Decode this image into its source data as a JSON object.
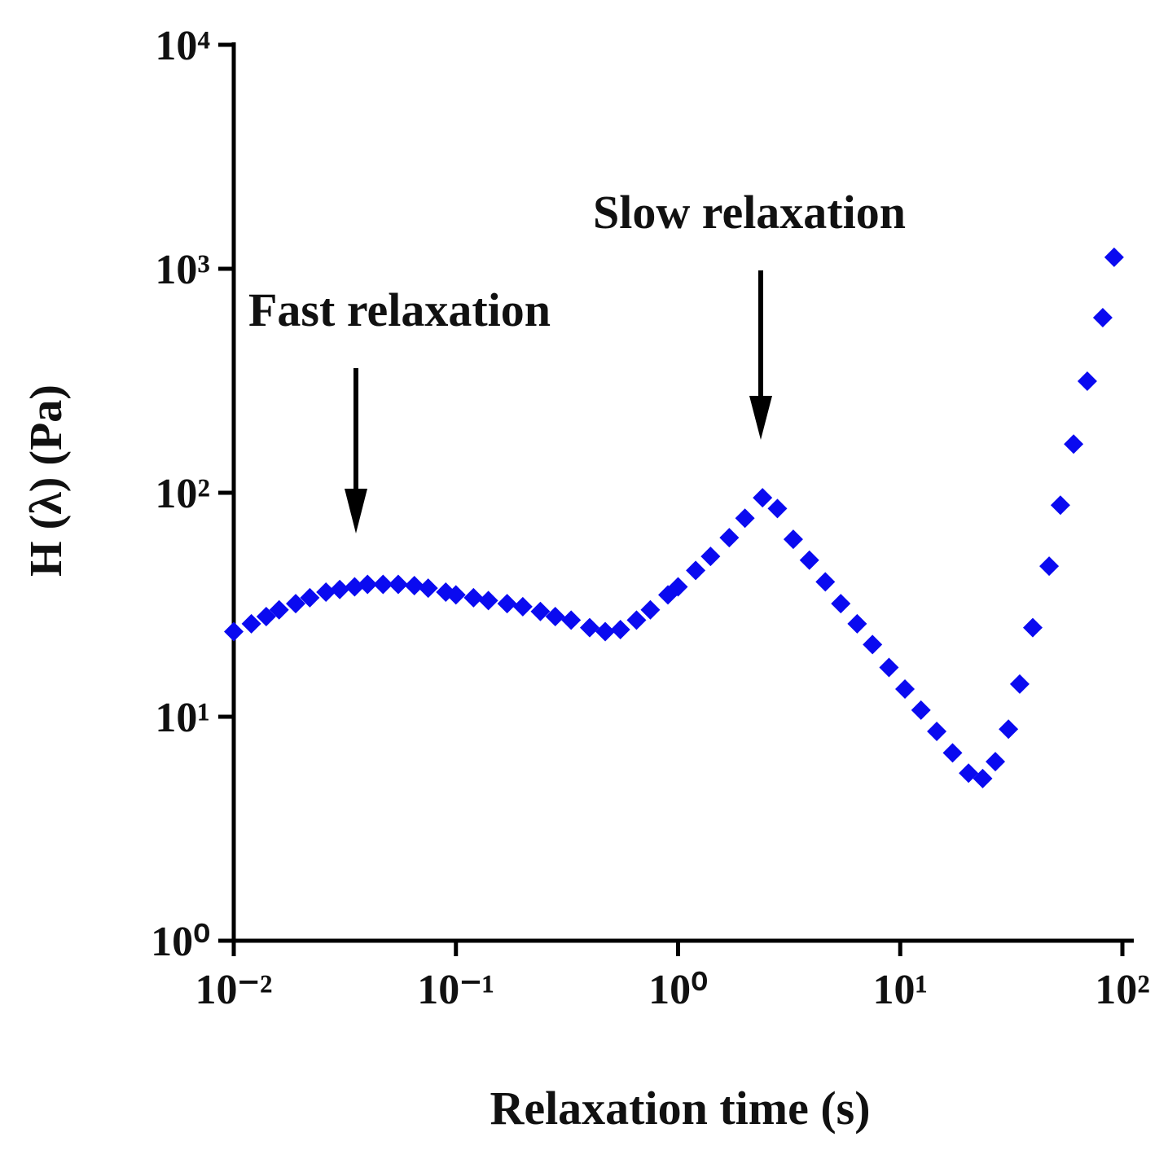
{
  "chart_data": {
    "type": "scatter",
    "xlabel": "Relaxation time (s)",
    "ylabel": "H (λ) (Pa)",
    "annotations": [
      "Fast relaxation",
      "Slow relaxation"
    ],
    "xscale": "log",
    "yscale": "log",
    "xlim": [
      0.01,
      100
    ],
    "ylim": [
      1,
      10000
    ],
    "xticks": [
      {
        "value": 0.01,
        "label": "10⁻²"
      },
      {
        "value": 0.1,
        "label": "10⁻¹"
      },
      {
        "value": 1,
        "label": "10⁰"
      },
      {
        "value": 10,
        "label": "10¹"
      },
      {
        "value": 100,
        "label": "10²"
      }
    ],
    "yticks": [
      {
        "value": 1,
        "label": "10⁰"
      },
      {
        "value": 10,
        "label": "10¹"
      },
      {
        "value": 100,
        "label": "10²"
      },
      {
        "value": 1000,
        "label": "10³"
      },
      {
        "value": 10000,
        "label": "10⁴"
      }
    ],
    "color": "#0a0af0",
    "x": [
      0.01,
      0.012,
      0.014,
      0.016,
      0.019,
      0.022,
      0.026,
      0.03,
      0.035,
      0.04,
      0.047,
      0.055,
      0.065,
      0.075,
      0.09,
      0.1,
      0.12,
      0.14,
      0.17,
      0.2,
      0.24,
      0.28,
      0.33,
      0.4,
      0.47,
      0.55,
      0.65,
      0.75,
      0.9,
      1.0,
      1.2,
      1.4,
      1.7,
      2.0,
      2.4,
      2.8,
      3.3,
      3.9,
      4.6,
      5.4,
      6.4,
      7.5,
      8.9,
      10.5,
      12.4,
      14.6,
      17.2,
      20.3,
      23.5,
      26.8,
      30.7,
      34.5,
      39.5,
      46.8,
      52.6,
      60.3,
      69.5,
      81.6,
      91.8
    ],
    "values": [
      24,
      26,
      28,
      30,
      32,
      34,
      36,
      37,
      38,
      39,
      39,
      39,
      38.5,
      37.5,
      36,
      35,
      34,
      33,
      32,
      31,
      29.5,
      28,
      27,
      25,
      24,
      24.5,
      27,
      30,
      35,
      38,
      45,
      52,
      63,
      77,
      95,
      85,
      62,
      50,
      40,
      32,
      26,
      21,
      16.6,
      13.3,
      10.7,
      8.6,
      6.9,
      5.6,
      5.3,
      6.3,
      8.8,
      14,
      25,
      47,
      88,
      165,
      315,
      605,
      1125
    ]
  }
}
